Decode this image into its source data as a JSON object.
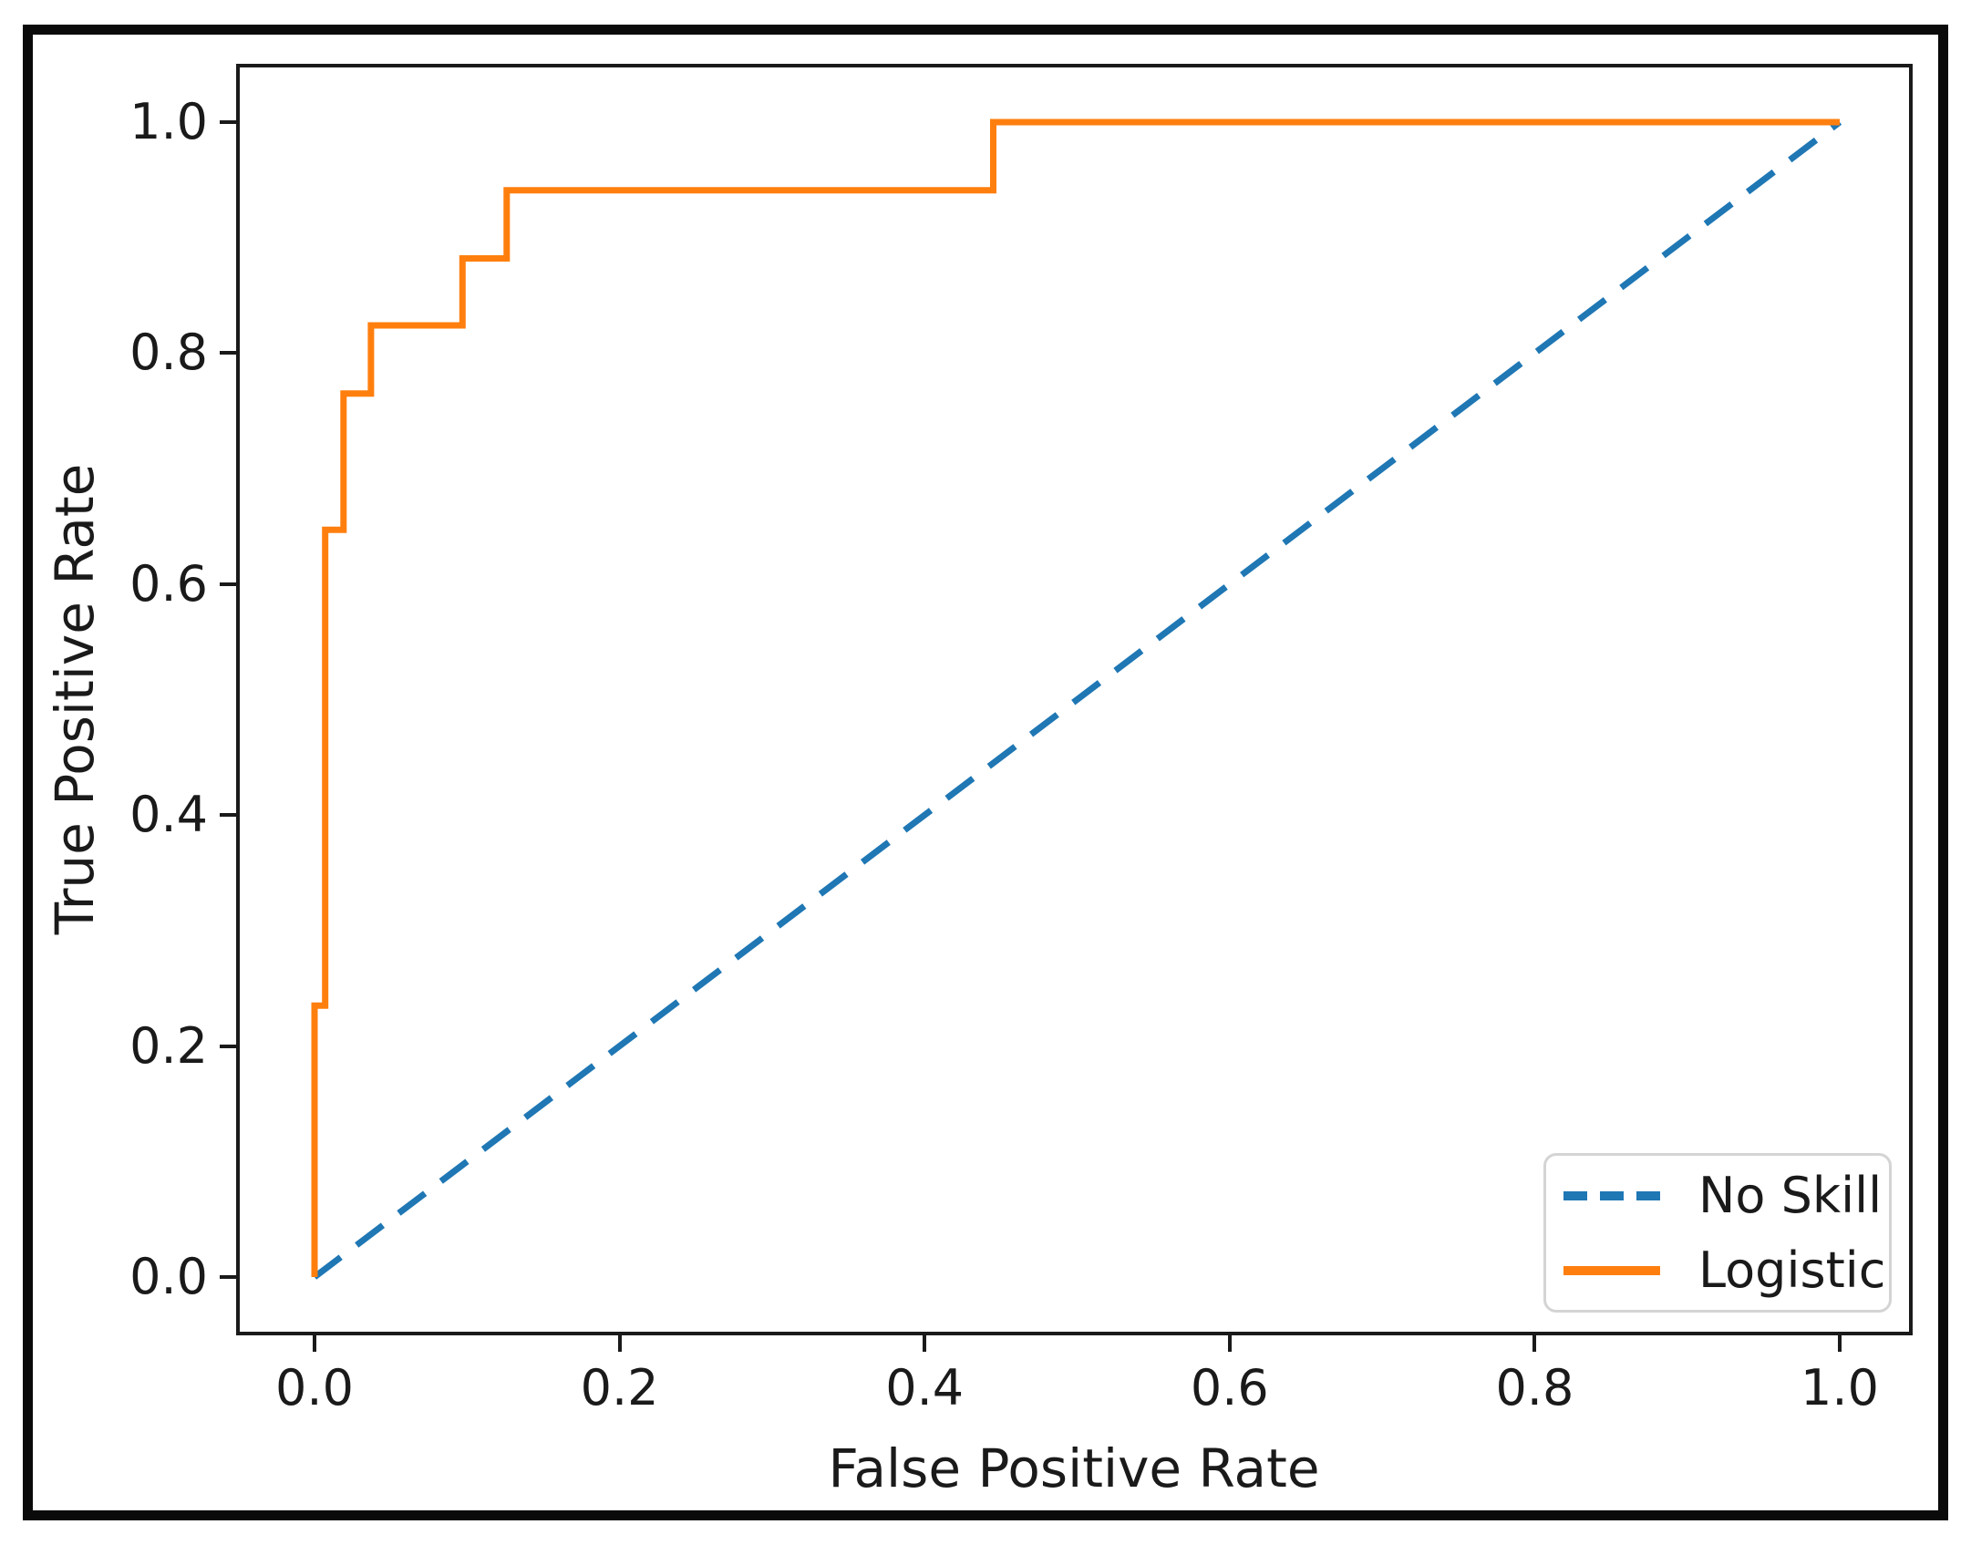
{
  "chart_data": {
    "type": "line",
    "subtype": "roc-curve",
    "title": "",
    "xlabel": "False Positive Rate",
    "ylabel": "True Positive Rate",
    "xlim": [
      0.0,
      1.0
    ],
    "ylim": [
      0.0,
      1.0
    ],
    "x_ticks": [
      "0.0",
      "0.2",
      "0.4",
      "0.6",
      "0.8",
      "1.0"
    ],
    "y_ticks": [
      "0.0",
      "0.2",
      "0.4",
      "0.6",
      "0.8",
      "1.0"
    ],
    "grid": false,
    "legend_position": "lower right",
    "axis_color": "#1a1a1a",
    "background_color": "#ffffff",
    "series": [
      {
        "name": "No Skill",
        "style": "dashed",
        "color": "#1f77b4",
        "x": [
          0.0,
          1.0
        ],
        "y": [
          0.0,
          1.0
        ]
      },
      {
        "name": "Logistic",
        "style": "solid",
        "color": "#ff7f0e",
        "x": [
          0.0,
          0.0,
          0.007,
          0.007,
          0.019,
          0.019,
          0.037,
          0.037,
          0.097,
          0.097,
          0.126,
          0.126,
          0.445,
          0.445,
          1.0
        ],
        "y": [
          0.0,
          0.235,
          0.235,
          0.647,
          0.647,
          0.765,
          0.765,
          0.824,
          0.824,
          0.882,
          0.882,
          0.941,
          0.941,
          1.0,
          1.0
        ]
      }
    ]
  }
}
